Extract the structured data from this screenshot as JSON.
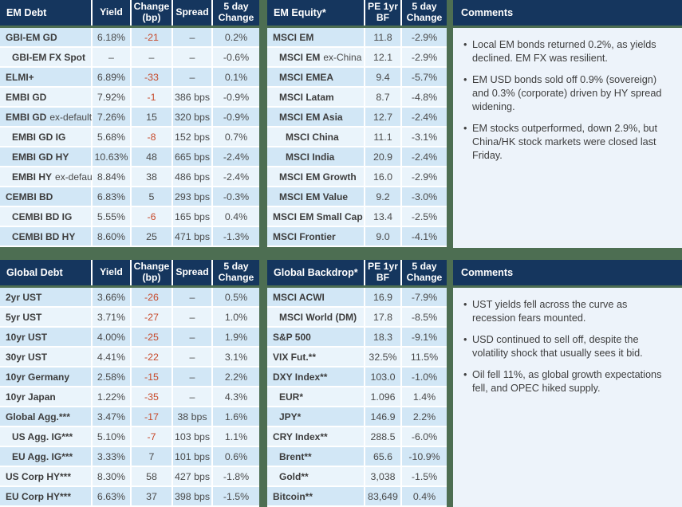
{
  "colors": {
    "page_bg": "#4d6e52",
    "header_bg": "#15365e",
    "row_blue": "#d2e7f6",
    "row_light": "#eaf4fb",
    "panel_bg": "#edf3fa",
    "negative_accent": "#c7492a"
  },
  "tables": [
    {
      "title": "EM Debt",
      "columns": [
        "Yield",
        "Change (bp)",
        "Spread",
        "5 day Change"
      ],
      "accent_col": 1,
      "rows": [
        {
          "label": "GBI-EM GD",
          "indent": 0,
          "values": [
            "6.18%",
            "-21",
            "–",
            "0.2%"
          ]
        },
        {
          "label": "GBI-EM FX Spot",
          "indent": 1,
          "values": [
            "–",
            "–",
            "–",
            "-0.6%"
          ]
        },
        {
          "label": "ELMI+",
          "indent": 0,
          "values": [
            "6.89%",
            "-33",
            "–",
            "0.1%"
          ]
        },
        {
          "label": "EMBI GD",
          "indent": 0,
          "values": [
            "7.92%",
            "-1",
            "386 bps",
            "-0.9%"
          ]
        },
        {
          "label": "EMBI GD",
          "suffix": "ex-default",
          "indent": 0,
          "values": [
            "7.26%",
            "15",
            "320 bps",
            "-0.9%"
          ]
        },
        {
          "label": "EMBI GD IG",
          "indent": 1,
          "values": [
            "5.68%",
            "-8",
            "152 bps",
            "0.7%"
          ]
        },
        {
          "label": "EMBI GD HY",
          "indent": 1,
          "values": [
            "10.63%",
            "48",
            "665 bps",
            "-2.4%"
          ]
        },
        {
          "label": "EMBI HY",
          "suffix": "ex-default",
          "indent": 1,
          "values": [
            "8.84%",
            "38",
            "486 bps",
            "-2.4%"
          ]
        },
        {
          "label": "CEMBI BD",
          "indent": 0,
          "values": [
            "6.83%",
            "5",
            "293 bps",
            "-0.3%"
          ]
        },
        {
          "label": "CEMBI BD IG",
          "indent": 1,
          "values": [
            "5.55%",
            "-6",
            "165 bps",
            "0.4%"
          ]
        },
        {
          "label": "CEMBI BD HY",
          "indent": 1,
          "values": [
            "8.60%",
            "25",
            "471 bps",
            "-1.3%"
          ]
        }
      ]
    },
    {
      "title": "EM Equity*",
      "columns": [
        "PE 1yr BF",
        "5 day Change"
      ],
      "accent_col": null,
      "rows": [
        {
          "label": "MSCI EM",
          "indent": 0,
          "values": [
            "11.8",
            "-2.9%"
          ]
        },
        {
          "label": "MSCI EM",
          "suffix": "ex-China",
          "indent": 1,
          "values": [
            "12.1",
            "-2.9%"
          ]
        },
        {
          "label": "MSCI EMEA",
          "indent": 1,
          "values": [
            "9.4",
            "-5.7%"
          ]
        },
        {
          "label": "MSCI Latam",
          "indent": 1,
          "values": [
            "8.7",
            "-4.8%"
          ]
        },
        {
          "label": "MSCI EM Asia",
          "indent": 1,
          "values": [
            "12.7",
            "-2.4%"
          ]
        },
        {
          "label": "MSCI China",
          "indent": 2,
          "values": [
            "11.1",
            "-3.1%"
          ]
        },
        {
          "label": "MSCI India",
          "indent": 2,
          "values": [
            "20.9",
            "-2.4%"
          ]
        },
        {
          "label": "MSCI EM Growth",
          "indent": 1,
          "values": [
            "16.0",
            "-2.9%"
          ]
        },
        {
          "label": "MSCI EM Value",
          "indent": 1,
          "values": [
            "9.2",
            "-3.0%"
          ]
        },
        {
          "label": "MSCI EM Small Cap",
          "indent": 0,
          "values": [
            "13.4",
            "-2.5%"
          ]
        },
        {
          "label": "MSCI Frontier",
          "indent": 0,
          "values": [
            "9.0",
            "-4.1%"
          ]
        }
      ]
    },
    {
      "title": "Global Debt",
      "columns": [
        "Yield",
        "Change (bp)",
        "Spread",
        "5 day Change"
      ],
      "accent_col": 1,
      "rows": [
        {
          "label": "2yr UST",
          "indent": 0,
          "values": [
            "3.66%",
            "-26",
            "–",
            "0.5%"
          ]
        },
        {
          "label": "5yr UST",
          "indent": 0,
          "values": [
            "3.71%",
            "-27",
            "–",
            "1.0%"
          ]
        },
        {
          "label": "10yr UST",
          "indent": 0,
          "values": [
            "4.00%",
            "-25",
            "–",
            "1.9%"
          ]
        },
        {
          "label": "30yr UST",
          "indent": 0,
          "values": [
            "4.41%",
            "-22",
            "–",
            "3.1%"
          ]
        },
        {
          "label": "10yr Germany",
          "indent": 0,
          "values": [
            "2.58%",
            "-15",
            "–",
            "2.2%"
          ]
        },
        {
          "label": "10yr Japan",
          "indent": 0,
          "values": [
            "1.22%",
            "-35",
            "–",
            "4.3%"
          ]
        },
        {
          "label": "Global Agg.***",
          "indent": 0,
          "values": [
            "3.47%",
            "-17",
            "38 bps",
            "1.6%"
          ]
        },
        {
          "label": "US Agg. IG***",
          "indent": 1,
          "values": [
            "5.10%",
            "-7",
            "103 bps",
            "1.1%"
          ]
        },
        {
          "label": "EU Agg. IG***",
          "indent": 1,
          "values": [
            "3.33%",
            "7",
            "101 bps",
            "0.6%"
          ]
        },
        {
          "label": "US Corp HY***",
          "indent": 0,
          "values": [
            "8.30%",
            "58",
            "427 bps",
            "-1.8%"
          ]
        },
        {
          "label": "EU Corp HY***",
          "indent": 0,
          "values": [
            "6.63%",
            "37",
            "398 bps",
            "-1.5%"
          ]
        }
      ]
    },
    {
      "title": "Global Backdrop*",
      "columns": [
        "PE 1yr BF",
        "5 day Change"
      ],
      "accent_col": null,
      "rows": [
        {
          "label": "MSCI ACWI",
          "indent": 0,
          "values": [
            "16.9",
            "-7.9%"
          ]
        },
        {
          "label": "MSCI World (DM)",
          "indent": 1,
          "values": [
            "17.8",
            "-8.5%"
          ]
        },
        {
          "label": "S&P 500",
          "indent": 0,
          "values": [
            "18.3",
            "-9.1%"
          ]
        },
        {
          "label": "VIX Fut.**",
          "indent": 0,
          "values": [
            "32.5%",
            "11.5%"
          ]
        },
        {
          "label": "DXY Index**",
          "indent": 0,
          "values": [
            "103.0",
            "-1.0%"
          ]
        },
        {
          "label": "EUR*",
          "indent": 1,
          "values": [
            "1.096",
            "1.4%"
          ]
        },
        {
          "label": "JPY*",
          "indent": 1,
          "values": [
            "146.9",
            "2.2%"
          ]
        },
        {
          "label": "CRY Index**",
          "indent": 0,
          "values": [
            "288.5",
            "-6.0%"
          ]
        },
        {
          "label": "Brent**",
          "indent": 1,
          "values": [
            "65.6",
            "-10.9%"
          ]
        },
        {
          "label": "Gold**",
          "indent": 1,
          "values": [
            "3,038",
            "-1.5%"
          ]
        },
        {
          "label": "Bitcoin**",
          "indent": 0,
          "values": [
            "83,649",
            "0.4%"
          ]
        }
      ]
    }
  ],
  "comments": [
    {
      "title": "Comments",
      "bullets": [
        "Local EM bonds returned 0.2%, as yields declined. EM FX was resilient.",
        "EM USD bonds sold off 0.9% (sovereign) and 0.3% (corporate) driven by HY spread widening.",
        "EM stocks outperformed, down 2.9%, but China/HK stock markets were closed last Friday."
      ]
    },
    {
      "title": "Comments",
      "bullets": [
        "UST yields fell across the curve as recession fears mounted.",
        "USD continued to sell off, despite the volatility shock that usually sees it bid.",
        "Oil fell 11%, as global growth expectations fell, and OPEC hiked supply."
      ]
    }
  ]
}
